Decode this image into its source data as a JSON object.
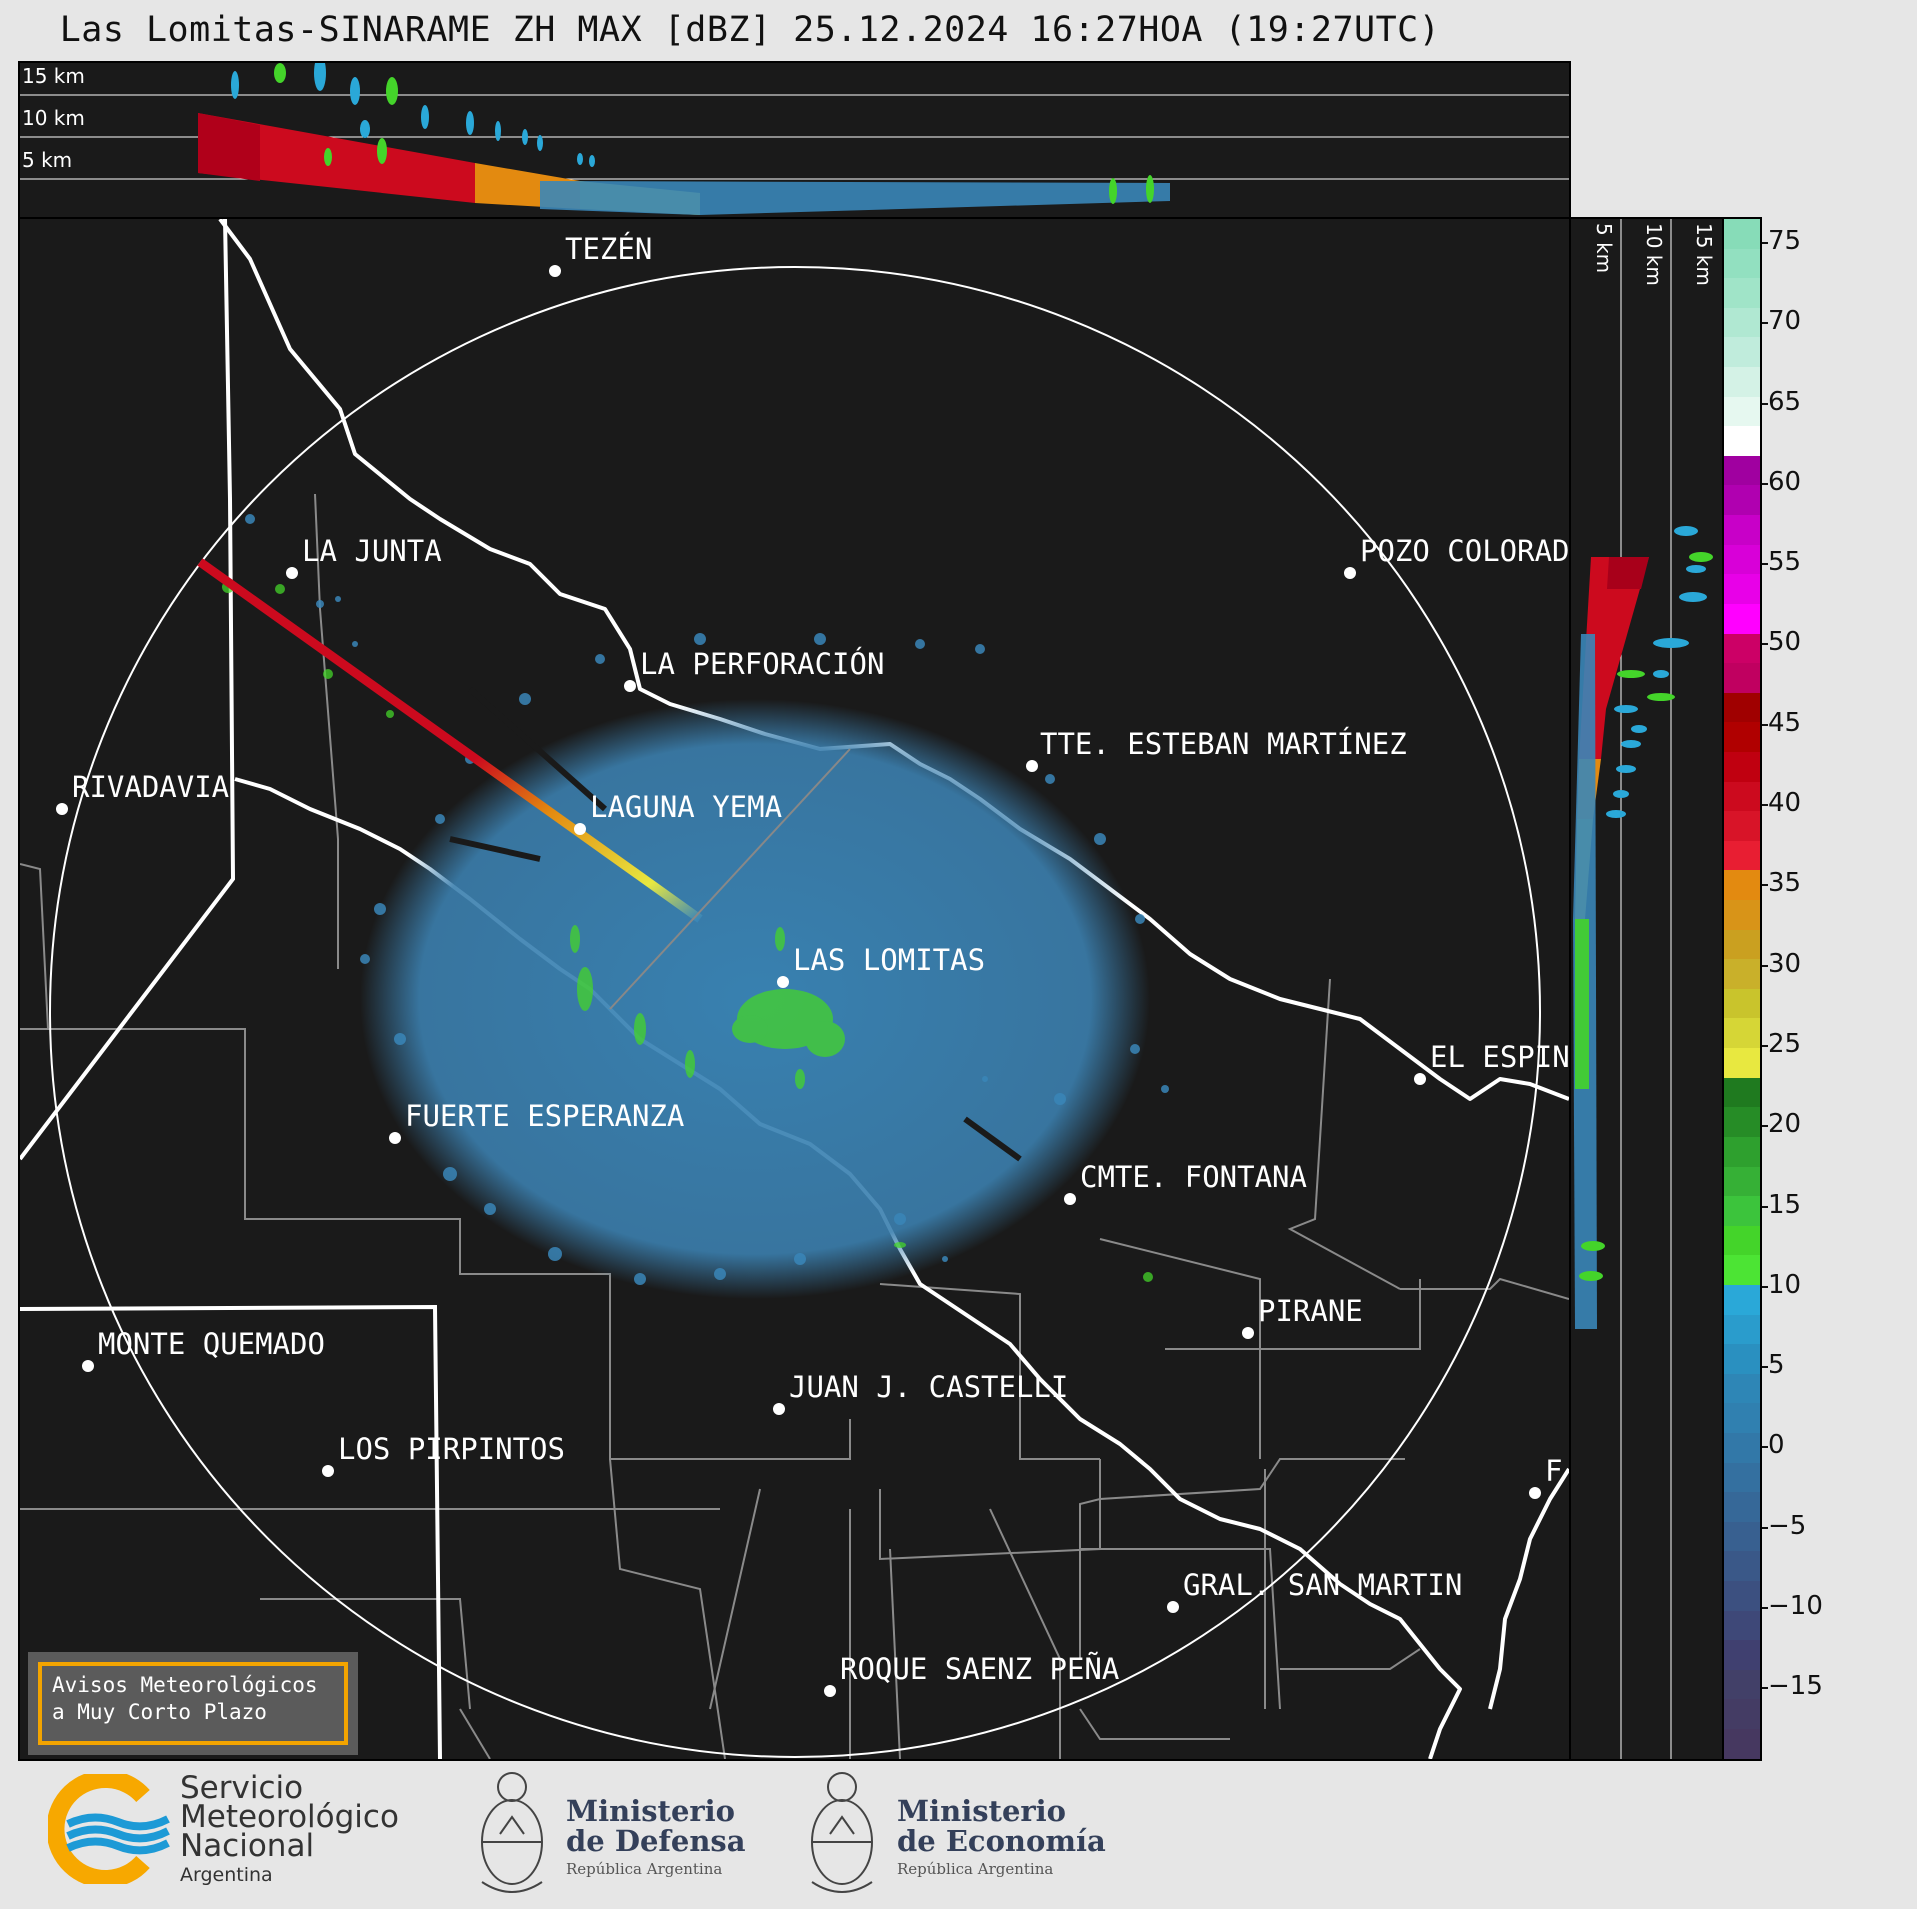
{
  "title": "Las Lomitas-SINARAME ZH MAX [dBZ] 25.12.2024 16:27HOA (19:27UTC)",
  "top_panel": {
    "altitudes": [
      "15 km",
      "10 km",
      "5 km"
    ]
  },
  "side_panel": {
    "altitudes": [
      "5 km",
      "10 km",
      "15 km"
    ]
  },
  "map": {
    "cities": [
      "TEZÉN",
      "LA JUNTA",
      "POZO COLORAD",
      "LA PERFORACIÓN",
      "TTE. ESTEBAN MARTÍNEZ",
      "RIVADAVIA",
      "LAGUNA YEMA",
      "LAS LOMITAS",
      "EL ESPIN",
      "FUERTE ESPERANZA",
      "CMTE. FONTANA",
      "PIRANE",
      "MONTE QUEMADO",
      "JUAN J. CASTELLI",
      "LOS PIRPINTOS",
      "F",
      "GRAL. SAN MARTIN",
      "ROQUE SAENZ PEÑA"
    ]
  },
  "colorbar": {
    "ticks": [
      "75",
      "70",
      "65",
      "60",
      "55",
      "50",
      "45",
      "40",
      "35",
      "30",
      "25",
      "20",
      "15",
      "10",
      "5",
      "0",
      "−5",
      "−10",
      "−15"
    ]
  },
  "avisos": {
    "line1": "Avisos Meteorológicos",
    "line2": "a Muy Corto Plazo"
  },
  "logos": {
    "smn_line1": "Servicio",
    "smn_line2": "Meteorológico",
    "smn_line3": "Nacional",
    "smn_country": "Argentina",
    "defensa_line1": "Ministerio",
    "defensa_line2": "de Defensa",
    "defensa_country": "República Argentina",
    "economia_line1": "Ministerio",
    "economia_line2": "de Economía",
    "economia_country": "República Argentina"
  },
  "colors": {
    "panel_bg": "#1a1a1a",
    "echo_blue": "#3a86b8",
    "echo_green": "#44d42a",
    "echo_red": "#cc0a1e",
    "echo_orange": "#e38a10",
    "accent_orange": "#f3a400",
    "smn_orange": "#f7a800",
    "smn_blue": "#1d9ad6"
  }
}
